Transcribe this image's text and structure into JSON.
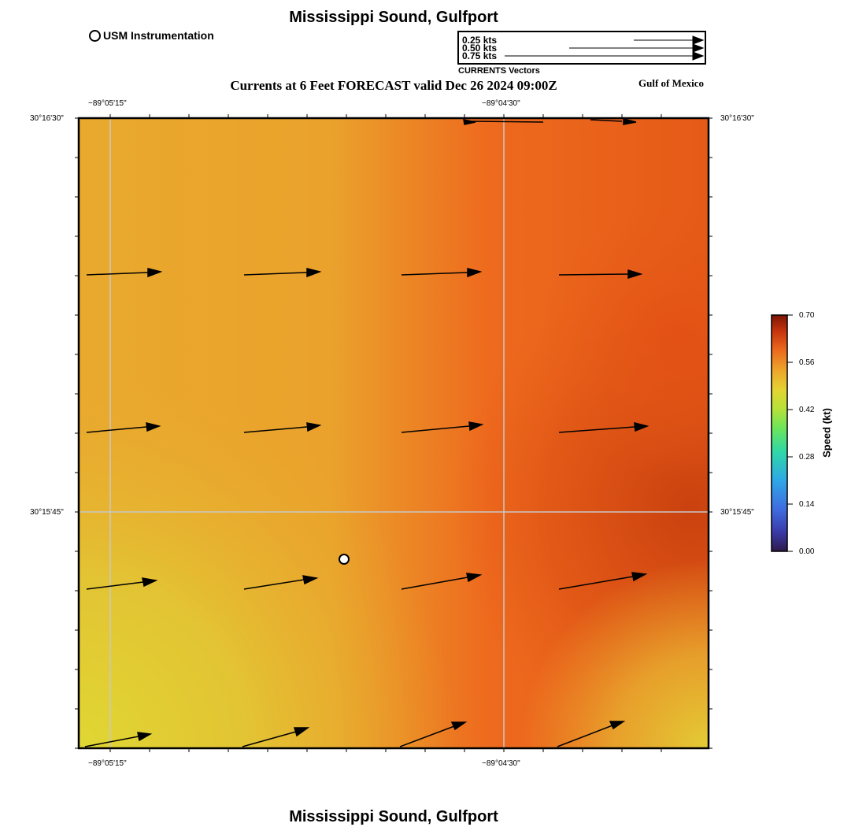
{
  "header": {
    "title": "Mississippi Sound, Gulfport",
    "subtitle": "Currents at 6 Feet FORECAST valid Dec 26 2024 09:00Z",
    "region": "Gulf of Mexico",
    "station_legend": "USM Instrumentation"
  },
  "vector_legend": {
    "caption": "CURRENTS Vectors",
    "rows": [
      {
        "label": "0.25 kts",
        "speed": 0.25
      },
      {
        "label": "0.50 kts",
        "speed": 0.5
      },
      {
        "label": "0.75 kts",
        "speed": 0.75
      }
    ]
  },
  "map": {
    "lon_labels": [
      "−89°05'15\"",
      "−89°04'30\""
    ],
    "lat_labels": [
      "30°16'30\"",
      "30°15'45\""
    ],
    "station": {
      "name": "USM Instrumentation"
    },
    "colors": {
      "low": "#e1d636",
      "mid": "#e9a62d",
      "high": "#ef5a18",
      "max": "#c9400f"
    }
  },
  "colorbar": {
    "label": "Speed (kt)",
    "ticks": [
      "0.70",
      "0.56",
      "0.42",
      "0.28",
      "0.14",
      "0.00"
    ],
    "range": [
      0.0,
      0.7
    ]
  },
  "footer": {
    "title": "Mississippi Sound, Gulfport"
  }
}
